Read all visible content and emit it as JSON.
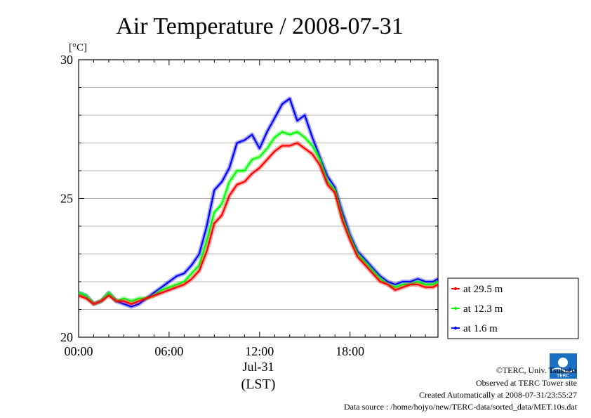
{
  "chart_data": {
    "type": "line",
    "title": "Air Temperature / 2008-07-31",
    "unit_label": "[°C]",
    "ylim": [
      20,
      30
    ],
    "y_ticks": [
      "30",
      "25",
      "20"
    ],
    "xlim": [
      0,
      23.833
    ],
    "x_ticks": [
      {
        "x": 0,
        "label": "00:00"
      },
      {
        "x": 6,
        "label": "06:00"
      },
      {
        "x": 12,
        "label": "12:00"
      },
      {
        "x": 18,
        "label": "18:00"
      }
    ],
    "date_label": "Jul-31",
    "time_zone_label": "(LST)",
    "grid": "horizontal",
    "legend_position": "right-bottom",
    "series": [
      {
        "name": "at 29.5 m",
        "color": "#ff0000",
        "x": [
          0,
          0.5,
          1,
          1.5,
          2,
          2.5,
          3,
          3.5,
          4,
          4.5,
          5,
          5.5,
          6,
          6.5,
          7,
          7.5,
          8,
          8.5,
          9,
          9.5,
          10,
          10.5,
          11,
          11.5,
          12,
          12.5,
          13,
          13.5,
          14,
          14.5,
          15,
          15.5,
          16,
          16.5,
          17,
          17.5,
          18,
          18.5,
          19,
          19.5,
          20,
          20.5,
          21,
          21.5,
          22,
          22.5,
          23,
          23.5,
          23.83
        ],
        "y": [
          21.5,
          21.4,
          21.2,
          21.3,
          21.5,
          21.3,
          21.3,
          21.2,
          21.3,
          21.4,
          21.5,
          21.6,
          21.7,
          21.8,
          21.9,
          22.1,
          22.4,
          23.1,
          24.1,
          24.4,
          25.1,
          25.5,
          25.6,
          25.9,
          26.1,
          26.4,
          26.7,
          26.9,
          26.9,
          27.0,
          26.8,
          26.6,
          26.2,
          25.5,
          25.2,
          24.2,
          23.5,
          22.9,
          22.6,
          22.3,
          22.0,
          21.9,
          21.7,
          21.8,
          21.9,
          21.9,
          21.8,
          21.8,
          21.9
        ]
      },
      {
        "name": "at 12.3 m",
        "color": "#00ff00",
        "x": [
          0,
          0.5,
          1,
          1.5,
          2,
          2.5,
          3,
          3.5,
          4,
          4.5,
          5,
          5.5,
          6,
          6.5,
          7,
          7.5,
          8,
          8.5,
          9,
          9.5,
          10,
          10.5,
          11,
          11.5,
          12,
          12.5,
          13,
          13.5,
          14,
          14.5,
          15,
          15.5,
          16,
          16.5,
          17,
          17.5,
          18,
          18.5,
          19,
          19.5,
          20,
          20.5,
          21,
          21.5,
          22,
          22.5,
          23,
          23.5,
          23.83
        ],
        "y": [
          21.6,
          21.5,
          21.2,
          21.3,
          21.6,
          21.3,
          21.4,
          21.3,
          21.4,
          21.4,
          21.5,
          21.7,
          21.8,
          21.9,
          22.0,
          22.3,
          22.6,
          23.5,
          24.5,
          24.8,
          25.6,
          26.0,
          26.0,
          26.4,
          26.5,
          26.8,
          27.2,
          27.4,
          27.3,
          27.4,
          27.2,
          26.9,
          26.4,
          25.6,
          25.3,
          24.3,
          23.6,
          23.0,
          22.7,
          22.4,
          22.1,
          21.9,
          21.8,
          21.9,
          21.9,
          22.0,
          21.9,
          21.9,
          22.0
        ]
      },
      {
        "name": "at 1.6 m",
        "color": "#0000ff",
        "x": [
          0,
          0.5,
          1,
          1.5,
          2,
          2.5,
          3,
          3.5,
          4,
          4.5,
          5,
          5.5,
          6,
          6.5,
          7,
          7.5,
          8,
          8.5,
          9,
          9.5,
          10,
          10.5,
          11,
          11.5,
          12,
          12.5,
          13,
          13.5,
          14,
          14.5,
          15,
          15.5,
          16,
          16.5,
          17,
          17.5,
          18,
          18.5,
          19,
          19.5,
          20,
          20.5,
          21,
          21.5,
          22,
          22.5,
          23,
          23.5,
          23.83
        ],
        "y": [
          21.6,
          21.5,
          21.2,
          21.3,
          21.6,
          21.3,
          21.2,
          21.1,
          21.2,
          21.4,
          21.6,
          21.8,
          22.0,
          22.2,
          22.3,
          22.6,
          23.0,
          24.0,
          25.3,
          25.6,
          26.1,
          27.0,
          27.1,
          27.3,
          26.8,
          27.4,
          27.9,
          28.4,
          28.6,
          27.8,
          28.0,
          27.2,
          26.5,
          25.8,
          25.4,
          24.5,
          23.7,
          23.1,
          22.8,
          22.5,
          22.2,
          22.0,
          21.9,
          22.0,
          22.0,
          22.1,
          22.0,
          22.0,
          22.1
        ]
      }
    ]
  },
  "footer": {
    "copyright": "©TERC, Univ. Tsukuba",
    "site": "Observed at TERC Tower site",
    "created": "Created Automatically at 2008-07-31/23:55:27",
    "source": "Data source : /home/hojyo/new/TERC-data/sorted_data/MET.10s.dat",
    "logo_text": "TERC"
  }
}
